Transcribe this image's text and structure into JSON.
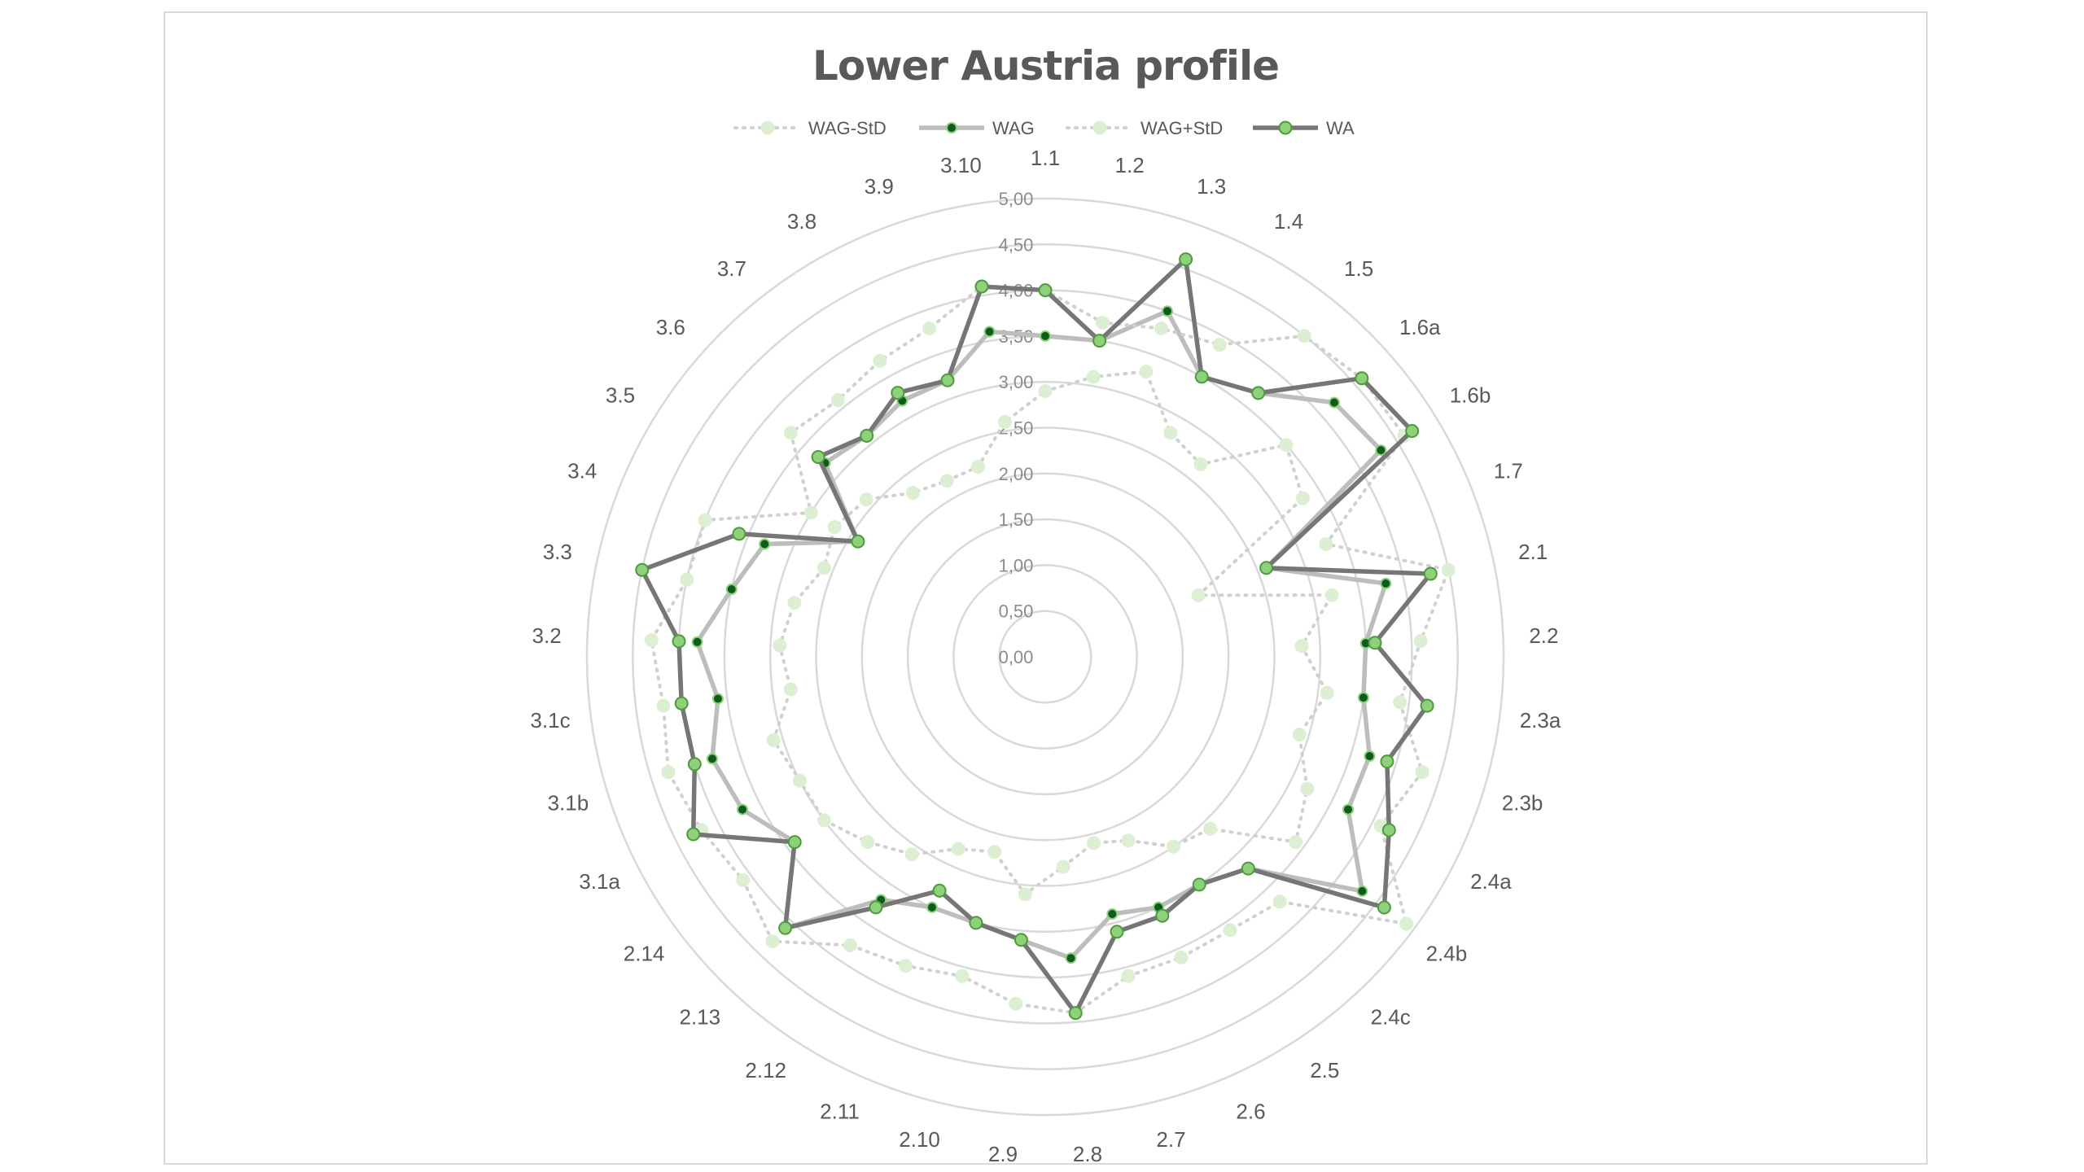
{
  "chart_data": {
    "type": "radar",
    "title": "Lower Austria profile",
    "categories": [
      "1.1",
      "1.2",
      "1.3",
      "1.4",
      "1.5",
      "1.6a",
      "1.6b",
      "1.7",
      "2.1",
      "2.2",
      "2.3a",
      "2.3b",
      "2.4a",
      "2.4b",
      "2.4c",
      "2.5",
      "2.6",
      "2.7",
      "2.8",
      "2.9",
      "2.10",
      "2.11",
      "2.12",
      "2.13",
      "2.14",
      "3.1a",
      "3.1b",
      "3.1c",
      "3.2",
      "3.3",
      "3.4",
      "3.5",
      "3.6",
      "3.7",
      "3.8",
      "3.9",
      "3.10"
    ],
    "r_ticks": [
      "0,00",
      "0,50",
      "1,00",
      "1,50",
      "2,00",
      "2,50",
      "3,00",
      "3,50",
      "4,00",
      "4,50",
      "5,00"
    ],
    "rlim": [
      0,
      5
    ],
    "legend_position": "top",
    "grid": true,
    "series": [
      {
        "name": "WAG-StD",
        "style": "dotted",
        "color": "#d4e8cc",
        "values": [
          2.9,
          3.1,
          3.3,
          2.8,
          2.7,
          3.5,
          3.3,
          1.8,
          3.2,
          2.8,
          3.1,
          2.9,
          3.2,
          3.4,
          2.6,
          2.5,
          2.2,
          2.1,
          2.3,
          2.6,
          2.2,
          2.3,
          2.6,
          2.8,
          3.0,
          3.0,
          3.1,
          2.8,
          2.9,
          2.8,
          2.6,
          2.7,
          2.6,
          2.3,
          2.2,
          2.2,
          2.6
        ]
      },
      {
        "name": "WAG",
        "style": "solid",
        "color": "#b8b8b8",
        "values": [
          3.5,
          3.5,
          4.0,
          3.5,
          3.7,
          4.2,
          4.3,
          2.6,
          3.8,
          3.5,
          3.5,
          3.7,
          3.7,
          4.3,
          3.2,
          3.0,
          3.0,
          2.9,
          3.3,
          3.1,
          3.0,
          3.0,
          3.2,
          4.1,
          3.4,
          3.7,
          3.8,
          3.6,
          3.8,
          3.5,
          3.3,
          2.4,
          3.2,
          3.1,
          3.2,
          3.2,
          3.6
        ]
      },
      {
        "name": "WAG+StD",
        "style": "dotted",
        "color": "#d4e8cc",
        "values": [
          4.0,
          3.7,
          3.8,
          3.9,
          4.5,
          4.6,
          4.6,
          3.3,
          4.5,
          4.1,
          3.9,
          4.3,
          4.1,
          4.9,
          3.7,
          3.6,
          3.6,
          3.6,
          3.9,
          3.8,
          3.6,
          3.7,
          3.8,
          4.3,
          4.1,
          4.2,
          4.3,
          4.2,
          4.3,
          4.0,
          4.0,
          3.0,
          3.7,
          3.6,
          3.7,
          3.8,
          4.1
        ]
      },
      {
        "name": "WA",
        "style": "solid",
        "color": "#7a7a7a",
        "values": [
          4.0,
          3.5,
          4.6,
          3.5,
          3.7,
          4.6,
          4.7,
          2.6,
          4.3,
          3.6,
          4.2,
          3.9,
          4.2,
          4.6,
          3.2,
          3.0,
          3.1,
          3.1,
          3.9,
          3.1,
          3.0,
          2.8,
          3.3,
          4.1,
          3.4,
          4.3,
          4.0,
          4.0,
          4.0,
          4.5,
          3.6,
          2.4,
          3.3,
          3.1,
          3.3,
          3.2,
          4.1
        ]
      }
    ]
  }
}
